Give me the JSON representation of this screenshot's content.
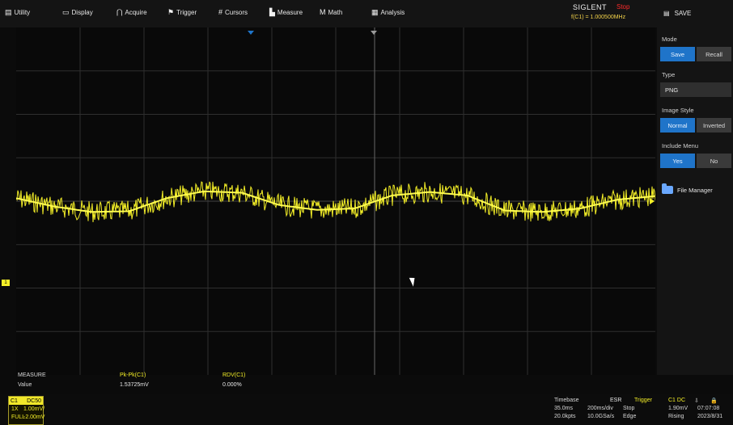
{
  "menu": {
    "items": [
      {
        "icon": "utility-icon",
        "label": "Utility"
      },
      {
        "icon": "display-icon",
        "label": "Display"
      },
      {
        "icon": "acquire-icon",
        "label": "Acquire"
      },
      {
        "icon": "trigger-icon",
        "label": "Trigger"
      },
      {
        "icon": "cursors-icon",
        "label": "Cursors"
      },
      {
        "icon": "measure-icon",
        "label": "Measure"
      },
      {
        "icon": "math-icon",
        "label": "Math"
      },
      {
        "icon": "analysis-icon",
        "label": "Analysis"
      }
    ]
  },
  "status": {
    "brand": "SIGLENT",
    "state": "Stop",
    "frequency": "f(C1) = 1.000500MHz"
  },
  "save_menu": {
    "title": "SAVE",
    "mode_label": "Mode",
    "mode_options": [
      "Save",
      "Recall"
    ],
    "mode_selected": "Save",
    "type_label": "Type",
    "type_value": "PNG",
    "image_style_label": "Image Style",
    "image_style_options": [
      "Normal",
      "Inverted"
    ],
    "image_style_selected": "Normal",
    "include_menu_label": "Include Menu",
    "include_menu_options": [
      "Yes",
      "No"
    ],
    "include_menu_selected": "Yes",
    "file_manager": "File Manager"
  },
  "measure": {
    "title": "MEASURE",
    "row_label": "Value",
    "cols": [
      {
        "name": "Pk-Pk(C1)",
        "value": "1.53725mV"
      },
      {
        "name": "RDV(C1)",
        "value": "0.000%"
      }
    ]
  },
  "channel": {
    "name": "C1",
    "coupling": "DC50",
    "probe": "1X",
    "scale": "1.00mV/",
    "bw": "FULL",
    "offset": "-2.00mV"
  },
  "timebase": {
    "label": "Timebase",
    "delay": "35.0ms",
    "scale": "200ms/div",
    "points": "20.0kpts",
    "rate": "10.0GSa/s"
  },
  "esr": {
    "label": "ESR",
    "state": "Stop",
    "type": "Edge"
  },
  "trigger": {
    "label": "Trigger",
    "source": "C1 DC",
    "level": "1.90mV",
    "slope": "Rising"
  },
  "datetime": {
    "time": "07:07:08",
    "date": "2023/8/31"
  },
  "colors": {
    "trace": "#f4ef27",
    "accent": "#1f74c9",
    "grid": "#3a3a3a"
  },
  "chart_data": {
    "type": "line",
    "x_divisions": 10,
    "y_divisions": 8,
    "series": [
      {
        "values": [
          0.22,
          0.1,
          0.02,
          0.03,
          0.22,
          0.32,
          0.3,
          0.12,
          0.05,
          0.07,
          0.26,
          0.31,
          0.26,
          0.04,
          0.02,
          0.07,
          0.2,
          0.25
        ]
      }
    ]
  }
}
